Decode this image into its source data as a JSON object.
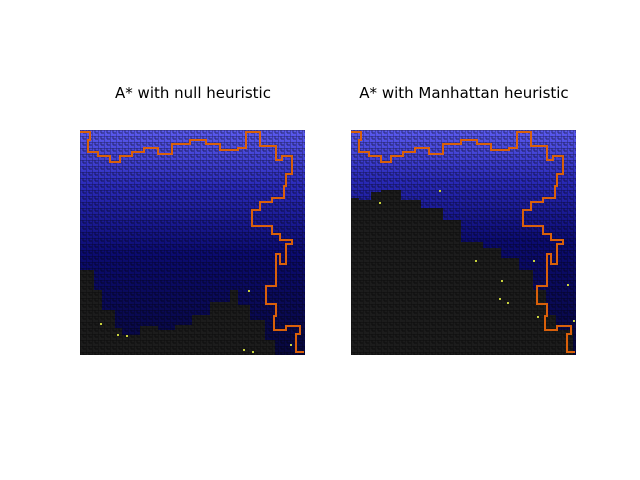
{
  "figure": {
    "panels": [
      {
        "title": "A* with null heuristic"
      },
      {
        "title": "A* with Manhattan heuristic"
      }
    ],
    "colors": {
      "unexplored": "#1c1c1c",
      "explored_dark": "#0a0a55",
      "explored_light": "#5b5bf0",
      "path": "#d9600a",
      "frontier": "#c8d23c",
      "wall": "#0e0e0e"
    }
  }
}
